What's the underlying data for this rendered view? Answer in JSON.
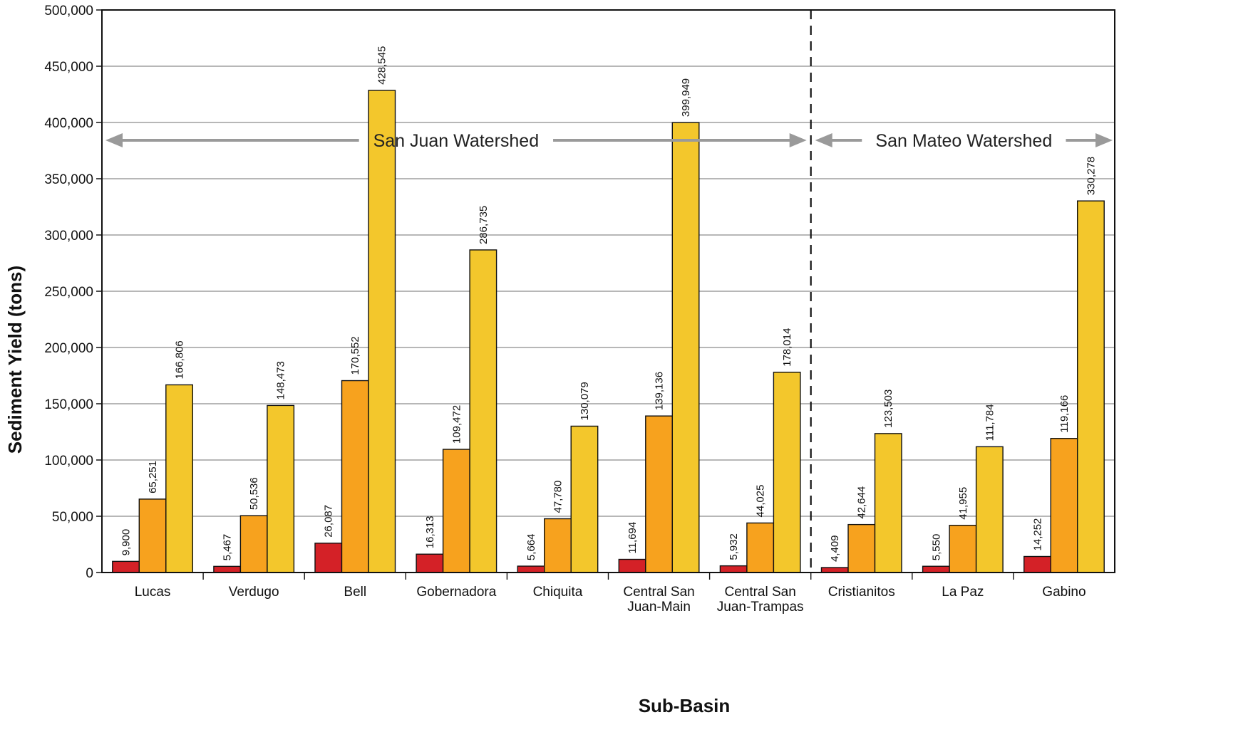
{
  "chart_data": {
    "type": "bar",
    "xlabel": "Sub-Basin",
    "ylabel": "Sediment Yield (tons)",
    "ylim": [
      0,
      500000
    ],
    "yticks": [
      0,
      50000,
      100000,
      150000,
      200000,
      250000,
      300000,
      350000,
      400000,
      450000,
      500000
    ],
    "ytick_labels": [
      "0",
      "50,000",
      "100,000",
      "150,000",
      "200,000",
      "250,000",
      "300,000",
      "350,000",
      "400,000",
      "450,000",
      "500,000"
    ],
    "grid": "horizontal",
    "categories": [
      [
        "Lucas"
      ],
      [
        "Verdugo"
      ],
      [
        "Bell"
      ],
      [
        "Gobernadora"
      ],
      [
        "Chiquita"
      ],
      [
        "Central San",
        "Juan-Main"
      ],
      [
        "Central San",
        "Juan-Trampas"
      ],
      [
        "Cristianitos"
      ],
      [
        "La Paz"
      ],
      [
        "Gabino"
      ]
    ],
    "series": [
      {
        "color": "#d42127",
        "values": [
          9900,
          5467,
          26087,
          16313,
          5664,
          11694,
          5932,
          4409,
          5550,
          14252
        ],
        "labels": [
          "9,900",
          "5,467",
          "26,087",
          "16,313",
          "5,664",
          "11,694",
          "5,932",
          "4,409",
          "5,550",
          "14,252"
        ]
      },
      {
        "color": "#f7a21e",
        "values": [
          65251,
          50536,
          170552,
          109472,
          47780,
          139136,
          44025,
          42644,
          41955,
          119166
        ],
        "labels": [
          "65,251",
          "50,536",
          "170,552",
          "109,472",
          "47,780",
          "139,136",
          "44,025",
          "42,644",
          "41,955",
          "119,166"
        ]
      },
      {
        "color": "#f3c72c",
        "values": [
          166806,
          148473,
          428545,
          286735,
          130079,
          399949,
          178014,
          123503,
          111784,
          330278
        ],
        "labels": [
          "166,806",
          "148,473",
          "428,545",
          "286,735",
          "130,079",
          "399,949",
          "178,014",
          "123,503",
          "111,784",
          "330,278"
        ]
      }
    ],
    "annotations": [
      {
        "text": "San Juan Watershed",
        "from_category": 0,
        "to_category": 6
      },
      {
        "text": "San Mateo Watershed",
        "from_category": 7,
        "to_category": 9
      }
    ],
    "divider_after_category": 6
  }
}
